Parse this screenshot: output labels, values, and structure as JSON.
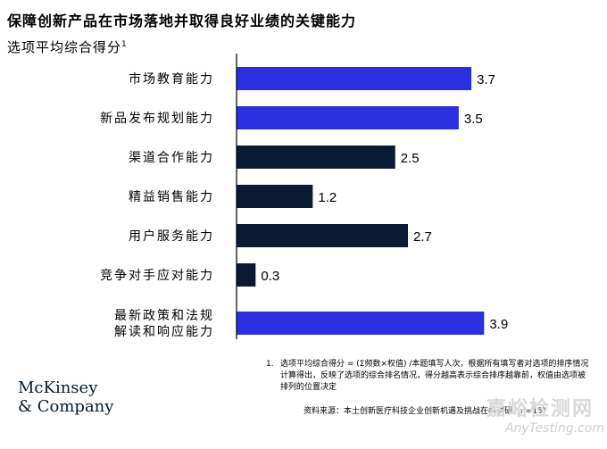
{
  "header": {
    "title": "保障创新产品在市场落地并取得良好业绩的关键能力",
    "subtitle": "选项平均综合得分",
    "subtitle_sup": "1"
  },
  "chart_data": {
    "type": "bar",
    "orientation": "horizontal",
    "categories": [
      [
        "市场教育能力"
      ],
      [
        "新品发布规划能力"
      ],
      [
        "渠道合作能力"
      ],
      [
        "精益销售能力"
      ],
      [
        "用户服务能力"
      ],
      [
        "竞争对手应对能力"
      ],
      [
        "最新政策和法规",
        "解读和响应能力"
      ]
    ],
    "values": [
      3.7,
      3.5,
      2.5,
      1.2,
      2.7,
      0.3,
      3.9
    ],
    "value_labels": [
      "3.7",
      "3.5",
      "2.5",
      "1.2",
      "2.7",
      "0.3",
      "3.9"
    ],
    "highlight": [
      true,
      true,
      false,
      false,
      false,
      false,
      true
    ],
    "colors": {
      "highlight": "#2b2fe0",
      "normal": "#0b1a33"
    },
    "xlim": [
      0,
      4.5
    ],
    "grid": false,
    "legend": "none"
  },
  "footnote": {
    "number": "1.",
    "text": "选项平均综合得分 = (Σ频数×权值) /本题填写人次，根据所有填写者对选项的排序情况计算得出，反映了选项的综合排名情况，得分越高表示综合排序越靠前，权值由选项被排列的位置决定"
  },
  "source": "资料来源：本土创新医疗科技企业创新机遇及挑战在线调研（n=15）",
  "brand": {
    "line1": "McKinsey",
    "line2": "& Company"
  },
  "watermark": {
    "text": "嘉峪检测网",
    "url": "AnyTesting.com"
  }
}
